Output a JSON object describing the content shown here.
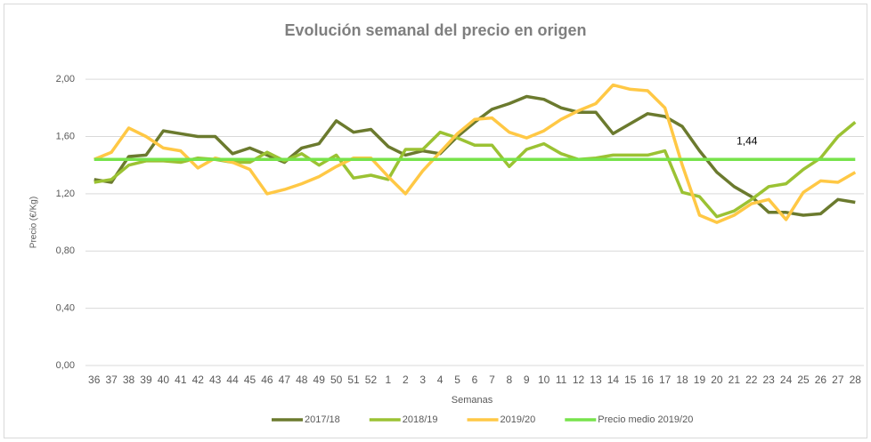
{
  "chart_data": {
    "type": "line",
    "title": "Evolución semanal del precio en origen",
    "x_label": "Semanas",
    "y_label": "Precio (€/Kg)",
    "categories": [
      "36",
      "37",
      "38",
      "39",
      "40",
      "41",
      "42",
      "43",
      "44",
      "45",
      "46",
      "47",
      "48",
      "49",
      "50",
      "51",
      "52",
      "1",
      "2",
      "3",
      "4",
      "5",
      "6",
      "7",
      "8",
      "9",
      "10",
      "11",
      "12",
      "13",
      "14",
      "15",
      "16",
      "17",
      "18",
      "19",
      "20",
      "21",
      "22",
      "23",
      "24",
      "25",
      "26",
      "27",
      "28"
    ],
    "ylim": [
      0,
      2.15
    ],
    "yticks": [
      {
        "value": 0,
        "label": "0,00"
      },
      {
        "value": 0.4,
        "label": "0,40"
      },
      {
        "value": 0.8,
        "label": "0,80"
      },
      {
        "value": 1.2,
        "label": "1,20"
      },
      {
        "value": 1.6,
        "label": "1,60"
      },
      {
        "value": 2,
        "label": "2,00"
      }
    ],
    "grid": true,
    "legend": "bottom",
    "series": [
      {
        "name": "2017/18",
        "color": "#6b7a2e",
        "values": [
          1.3,
          1.28,
          1.46,
          1.47,
          1.64,
          1.62,
          1.6,
          1.6,
          1.48,
          1.52,
          1.47,
          1.42,
          1.52,
          1.55,
          1.71,
          1.63,
          1.65,
          1.53,
          1.47,
          1.5,
          1.48,
          1.6,
          1.7,
          1.79,
          1.83,
          1.88,
          1.86,
          1.8,
          1.77,
          1.77,
          1.62,
          1.69,
          1.76,
          1.74,
          1.67,
          1.5,
          1.35,
          1.25,
          1.18,
          1.07,
          1.07,
          1.05,
          1.06,
          1.16,
          1.14
        ]
      },
      {
        "name": "2018/19",
        "color": "#9bc233",
        "values": [
          1.28,
          1.3,
          1.4,
          1.43,
          1.43,
          1.42,
          1.45,
          1.44,
          1.42,
          1.42,
          1.49,
          1.43,
          1.48,
          1.4,
          1.47,
          1.31,
          1.33,
          1.3,
          1.51,
          1.51,
          1.63,
          1.59,
          1.54,
          1.54,
          1.39,
          1.51,
          1.55,
          1.48,
          1.44,
          1.45,
          1.47,
          1.47,
          1.47,
          1.5,
          1.21,
          1.18,
          1.04,
          1.08,
          1.16,
          1.25,
          1.27,
          1.37,
          1.45,
          1.6,
          1.7
        ]
      },
      {
        "name": "2019/20",
        "color": "#ffc845",
        "values": [
          1.44,
          1.49,
          1.66,
          1.6,
          1.52,
          1.5,
          1.38,
          1.45,
          1.42,
          1.37,
          1.2,
          1.23,
          1.27,
          1.32,
          1.39,
          1.45,
          1.45,
          1.32,
          1.2,
          1.36,
          1.49,
          1.62,
          1.72,
          1.73,
          1.63,
          1.59,
          1.64,
          1.72,
          1.78,
          1.83,
          1.96,
          1.93,
          1.92,
          1.8,
          1.4,
          1.05,
          1.0,
          1.05,
          1.13,
          1.16,
          1.02,
          1.21,
          1.29,
          1.28,
          1.35
        ]
      },
      {
        "name": "Precio medio 2019/20",
        "color": "#77e34b",
        "values": [
          1.44,
          1.44,
          1.44,
          1.44,
          1.44,
          1.44,
          1.44,
          1.44,
          1.44,
          1.44,
          1.44,
          1.44,
          1.44,
          1.44,
          1.44,
          1.44,
          1.44,
          1.44,
          1.44,
          1.44,
          1.44,
          1.44,
          1.44,
          1.44,
          1.44,
          1.44,
          1.44,
          1.44,
          1.44,
          1.44,
          1.44,
          1.44,
          1.44,
          1.44,
          1.44,
          1.44,
          1.44,
          1.44,
          1.44,
          1.44,
          1.44,
          1.44,
          1.44,
          1.44,
          1.44
        ],
        "value_labels": [
          null,
          null,
          null,
          null,
          null,
          null,
          null,
          null,
          null,
          null,
          null,
          null,
          null,
          null,
          null,
          null,
          null,
          null,
          null,
          null,
          null,
          null,
          null,
          null,
          null,
          null,
          null,
          null,
          null,
          null,
          null,
          null,
          null,
          null,
          null,
          null,
          null,
          null,
          "1,44",
          null,
          null,
          null,
          null,
          null,
          null
        ]
      }
    ]
  }
}
